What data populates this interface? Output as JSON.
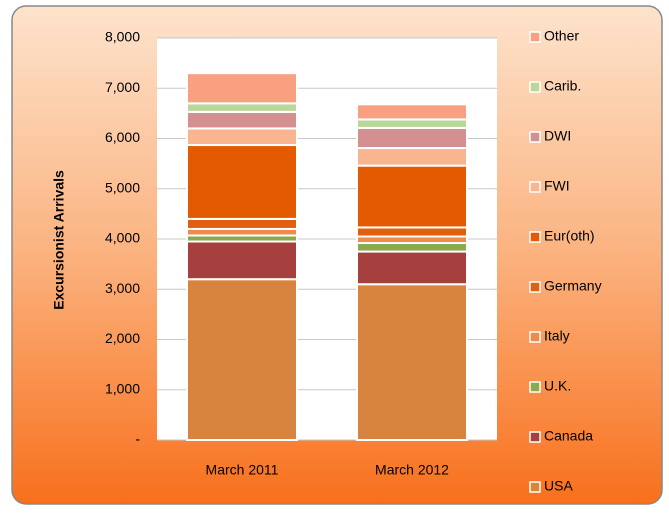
{
  "chart_data": {
    "type": "stacked_bar",
    "y_label": "Excursionist Arrivals",
    "categories": [
      "March 2011",
      "March 2012"
    ],
    "series": [
      {
        "name": "USA",
        "color": "#d9843e",
        "values": [
          3200,
          3100
        ]
      },
      {
        "name": "Canada",
        "color": "#a5403f",
        "values": [
          750,
          650
        ]
      },
      {
        "name": "U.K.",
        "color": "#8aaa4e",
        "values": [
          120,
          170
        ]
      },
      {
        "name": "Italy",
        "color": "#f08a4a",
        "values": [
          130,
          130
        ]
      },
      {
        "name": "Germany",
        "color": "#e06010",
        "values": [
          200,
          180
        ]
      },
      {
        "name": "Eur(oth)",
        "color": "#e35a00",
        "values": [
          1470,
          1230
        ]
      },
      {
        "name": "FWI",
        "color": "#f9b58f",
        "values": [
          330,
          350
        ]
      },
      {
        "name": "DWI",
        "color": "#d49090",
        "values": [
          330,
          400
        ]
      },
      {
        "name": "Carib.",
        "color": "#b9d79b",
        "values": [
          170,
          170
        ]
      },
      {
        "name": "Other",
        "color": "#f8a080",
        "values": [
          600,
          300
        ]
      }
    ],
    "ylim": [
      0,
      8000
    ],
    "yticks": [
      {
        "value": 0,
        "label": "-"
      },
      {
        "value": 1000,
        "label": "1,000"
      },
      {
        "value": 2000,
        "label": "2,000"
      },
      {
        "value": 3000,
        "label": "3,000"
      },
      {
        "value": 4000,
        "label": "4,000"
      },
      {
        "value": 5000,
        "label": "5,000"
      },
      {
        "value": 6000,
        "label": "6,000"
      },
      {
        "value": 7000,
        "label": "7,000"
      },
      {
        "value": 8000,
        "label": "8,000"
      }
    ],
    "grid": true
  }
}
